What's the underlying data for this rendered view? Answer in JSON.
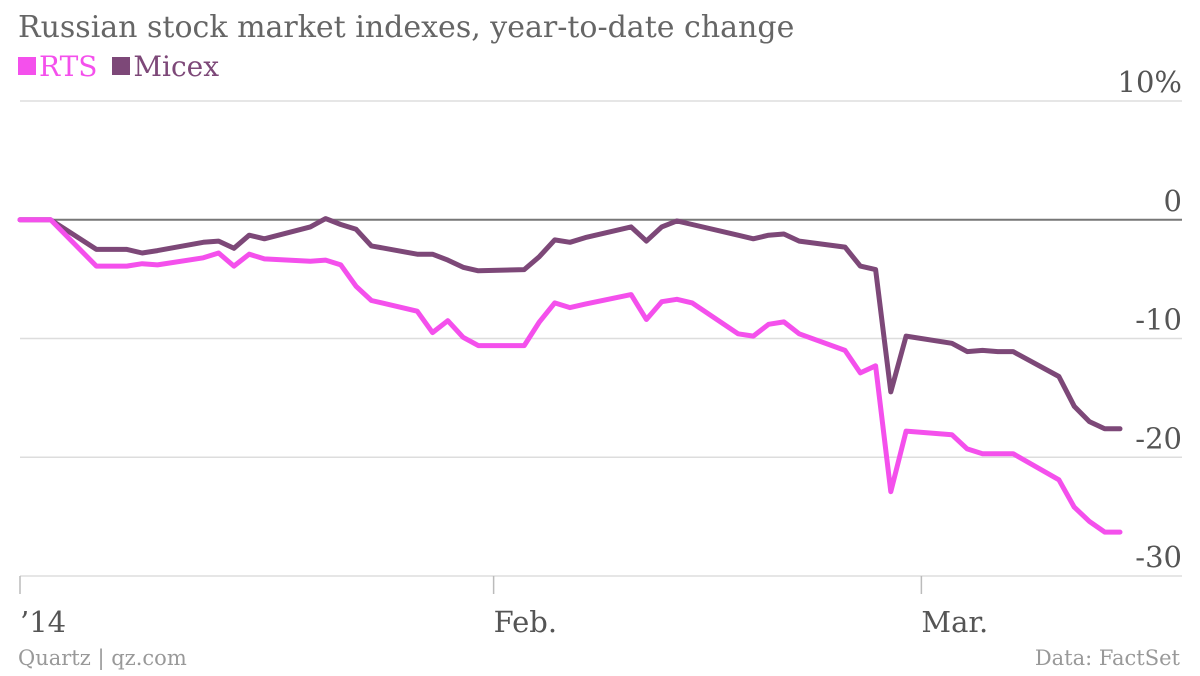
{
  "chart_data": {
    "type": "line",
    "title": "Russian stock market indexes, year-to-date change",
    "y_ticks": [
      "10%",
      "0",
      "-10",
      "-20",
      "-30"
    ],
    "y_tick_values": [
      10,
      0,
      -10,
      -20,
      -30
    ],
    "ylim": [
      -30,
      10
    ],
    "x_ticks": [
      {
        "label": "’14",
        "date": "2014-01-01"
      },
      {
        "label": "Feb.",
        "date": "2014-02-01"
      },
      {
        "label": "Mar.",
        "date": "2014-03-01"
      }
    ],
    "grid": true,
    "legend": "top-left",
    "x": [
      "2014-01-01",
      "2014-01-03",
      "2014-01-06",
      "2014-01-08",
      "2014-01-09",
      "2014-01-10",
      "2014-01-13",
      "2014-01-14",
      "2014-01-15",
      "2014-01-16",
      "2014-01-17",
      "2014-01-20",
      "2014-01-21",
      "2014-01-22",
      "2014-01-23",
      "2014-01-24",
      "2014-01-27",
      "2014-01-28",
      "2014-01-29",
      "2014-01-30",
      "2014-01-31",
      "2014-02-03",
      "2014-02-04",
      "2014-02-05",
      "2014-02-06",
      "2014-02-07",
      "2014-02-10",
      "2014-02-11",
      "2014-02-12",
      "2014-02-13",
      "2014-02-14",
      "2014-02-17",
      "2014-02-18",
      "2014-02-19",
      "2014-02-20",
      "2014-02-21",
      "2014-02-24",
      "2014-02-25",
      "2014-02-26",
      "2014-02-27",
      "2014-02-28",
      "2014-03-03",
      "2014-03-04",
      "2014-03-05",
      "2014-03-06",
      "2014-03-07",
      "2014-03-10",
      "2014-03-11",
      "2014-03-12",
      "2014-03-13",
      "2014-03-14"
    ],
    "series": [
      {
        "name": "RTS",
        "color": "#f450ec",
        "values": [
          0,
          0,
          -3.9,
          -3.9,
          -3.7,
          -3.8,
          -3.2,
          -2.8,
          -3.9,
          -2.9,
          -3.3,
          -3.5,
          -3.4,
          -3.8,
          -5.6,
          -6.8,
          -7.7,
          -9.5,
          -8.5,
          -9.9,
          -10.6,
          -10.6,
          -8.6,
          -7.0,
          -7.4,
          -7.1,
          -6.3,
          -8.4,
          -6.9,
          -6.7,
          -7.0,
          -9.6,
          -9.8,
          -8.8,
          -8.6,
          -9.6,
          -11.0,
          -12.9,
          -12.3,
          -22.9,
          -17.8,
          -18.1,
          -19.3,
          -19.7,
          -19.7,
          -19.7,
          -21.9,
          -24.2,
          -25.4,
          -26.3,
          -26.3
        ]
      },
      {
        "name": "Micex",
        "color": "#7d4878",
        "values": [
          0,
          0,
          -2.5,
          -2.5,
          -2.8,
          -2.6,
          -1.9,
          -1.8,
          -2.4,
          -1.3,
          -1.6,
          -0.6,
          0.1,
          -0.4,
          -0.8,
          -2.2,
          -2.9,
          -2.9,
          -3.4,
          -4.0,
          -4.3,
          -4.2,
          -3.1,
          -1.7,
          -1.9,
          -1.5,
          -0.6,
          -1.8,
          -0.6,
          -0.1,
          -0.4,
          -1.3,
          -1.6,
          -1.3,
          -1.2,
          -1.8,
          -2.3,
          -3.9,
          -4.2,
          -14.5,
          -9.8,
          -10.4,
          -11.1,
          -11.0,
          -11.1,
          -11.1,
          -13.2,
          -15.7,
          -17.0,
          -17.6,
          -17.6
        ]
      }
    ]
  },
  "footer": {
    "source_left": "Quartz | qz.com",
    "source_right": "Data: FactSet"
  }
}
